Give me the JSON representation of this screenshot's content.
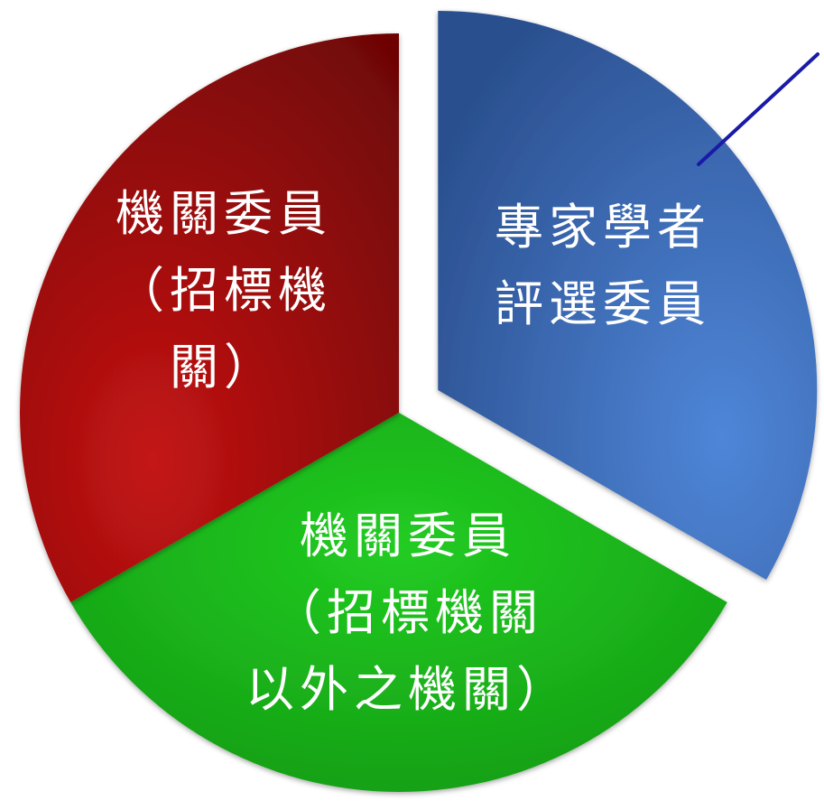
{
  "chart_data": {
    "type": "pie",
    "title": "",
    "slices": [
      {
        "label_lines": [
          "專家學者",
          "評選委員"
        ],
        "value": 33.3,
        "color": "#3f6fc0",
        "exploded": true
      },
      {
        "label_lines": [
          "機關委員",
          "（招標機關",
          "以外之機關）"
        ],
        "value": 33.3,
        "color": "#1db61d",
        "exploded": false
      },
      {
        "label_lines": [
          "機關委員",
          "（招標機",
          "關）"
        ],
        "value": 33.3,
        "color": "#b01010",
        "exploded": false
      }
    ],
    "annotation": {
      "type": "leader-line",
      "color": "#1a1aa8",
      "target_slice": 0
    },
    "legend": "none"
  }
}
